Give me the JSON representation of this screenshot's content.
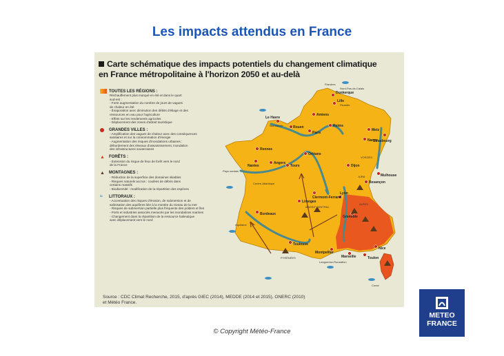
{
  "slide": {
    "title": "Les impacts attendus en France",
    "copyright": "© Copyright Météo-France"
  },
  "card": {
    "title_line1": "Carte schématique des impacts potentiels du changement climatique",
    "title_line2": "en France métropolitaine à l'horizon 2050 et au-delà",
    "source_line1": "Source : CDC Climat Recherche, 2015, d'après GIEC (2014), MEDDE (2014 et 2015), ONERC (2010)",
    "source_line2": "et Météo France."
  },
  "legend": {
    "all_regions": {
      "head": "TOUTES LES RÉGIONS :",
      "lines": [
        "Réchauffement plus marqué en été et dans le quart",
        "sud-est :",
        "- Forte augmentation du nombre de jours de vagues",
        "de chaleur en été",
        "- Évaporation avec diminution des débits d'étiage et des",
        "ressources en eau pour l'agriculture",
        "- Effets sur les rendements agricoles",
        "- Déplacement des zones d'attrait touristique"
      ]
    },
    "cities": {
      "head": "GRANDES VILLES :",
      "lines": [
        "- Amplification des vagues de chaleur avec des conséquences",
        "sanitaires et sur la consommation d'énergie",
        "- Augmentation des risques d'inondations urbaines :",
        "débordement des réseaux d'assainissement, inondation",
        "des infrastructures souterraines"
      ]
    },
    "forests": {
      "head": "FORÊTS :",
      "lines": [
        "- Extension du risque de feux de forêt vers le nord",
        "de la France"
      ]
    },
    "mountains": {
      "head": "MONTAGNES :",
      "lines": [
        "- Réduction de la superficie des domaines skiables",
        "- Risques naturels accrus : coulées de débris dans",
        "certains massifs",
        "- Biodiversité : modification de la répartition des espèces"
      ]
    },
    "coasts": {
      "head": "LITTORAUX :",
      "lines": [
        "- Accentuation des risques d'érosion, de submersion et de",
        "salinisation des aquifères liée à la montée du niveau de la mer",
        "- Risques de submersion partielle plus fréquente des polders et îles",
        "- Ports et industries associés menacés par les inondations marines",
        "- Changement dans la répartition de la ressource halieutique",
        "avec déplacement vers le nord"
      ]
    }
  },
  "map_labels": {
    "cities": [
      "Dunkerque",
      "Lille",
      "Amiens",
      "Le Havre",
      "Rouen",
      "Paris",
      "Reims",
      "Metz",
      "Strasbourg",
      "Nancy",
      "Rennes",
      "Orléans",
      "Nantes",
      "Angers",
      "Tours",
      "Dijon",
      "Mulhouse",
      "Besançon",
      "Limoges",
      "Clermont-Ferrand",
      "Lyon",
      "Grenoble",
      "Bordeaux",
      "Toulouse",
      "Montpellier",
      "Marseille",
      "Nice",
      "Toulon"
    ],
    "regions": [
      "Nord-Pas-de-Calais",
      "Picardie",
      "Normandie",
      "Flandres",
      "VOSGES",
      "JURA",
      "ALPES",
      "MASSIF CENTRAL",
      "PYRÉNÉES",
      "Centre-Atlantique",
      "Aquitaine",
      "Pays nantais",
      "Languedoc-Roussillon",
      "Corse"
    ]
  },
  "logo": {
    "line1": "METEO",
    "line2": "FRANCE"
  },
  "colors": {
    "title_blue": "#1c55b8",
    "land": "#f5b316",
    "southeast": "#e8531f",
    "river": "#4a8a8e",
    "sea": "#e9e8d5",
    "logo_bg": "#1f3f8c"
  }
}
